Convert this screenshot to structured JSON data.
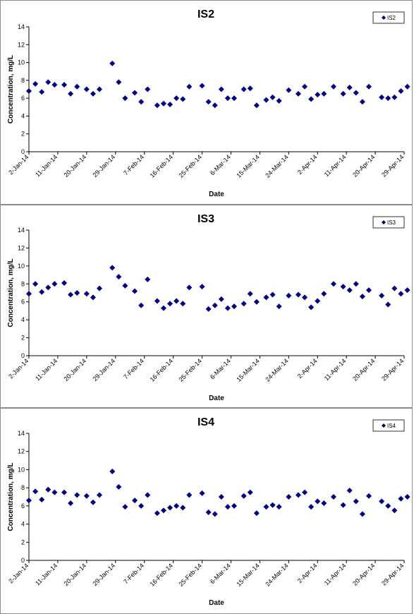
{
  "chart_data": [
    {
      "type": "scatter",
      "title": "IS2",
      "xlabel": "Date",
      "ylabel": "Concentration, mg/L",
      "ylim": [
        0,
        14
      ],
      "yticks": [
        0,
        2,
        4,
        6,
        8,
        10,
        12,
        14
      ],
      "xlim": [
        "2014-01-02",
        "2014-04-29"
      ],
      "xtick_labels": [
        "2-Jan-14",
        "11-Jan-14",
        "20-Jan-14",
        "29-Jan-14",
        "7-Feb-14",
        "16-Feb-14",
        "25-Feb-14",
        "6-Mar-14",
        "15-Mar-14",
        "24-Mar-14",
        "2-Apr-14",
        "11-Apr-14",
        "20-Apr-14",
        "29-Apr-14"
      ],
      "legend": "top-right",
      "grid": false,
      "series": [
        {
          "name": "IS2",
          "color": "#000080",
          "marker": "diamond",
          "points": [
            {
              "x": "2014-01-02",
              "y": 6.8
            },
            {
              "x": "2014-01-04",
              "y": 7.6
            },
            {
              "x": "2014-01-06",
              "y": 6.7
            },
            {
              "x": "2014-01-08",
              "y": 7.8
            },
            {
              "x": "2014-01-10",
              "y": 7.5
            },
            {
              "x": "2014-01-13",
              "y": 7.5
            },
            {
              "x": "2014-01-15",
              "y": 6.5
            },
            {
              "x": "2014-01-17",
              "y": 7.3
            },
            {
              "x": "2014-01-20",
              "y": 7.0
            },
            {
              "x": "2014-01-22",
              "y": 6.5
            },
            {
              "x": "2014-01-24",
              "y": 7.0
            },
            {
              "x": "2014-01-28",
              "y": 9.9
            },
            {
              "x": "2014-01-30",
              "y": 7.8
            },
            {
              "x": "2014-02-01",
              "y": 6.0
            },
            {
              "x": "2014-02-04",
              "y": 6.6
            },
            {
              "x": "2014-02-06",
              "y": 5.6
            },
            {
              "x": "2014-02-08",
              "y": 7.0
            },
            {
              "x": "2014-02-11",
              "y": 5.2
            },
            {
              "x": "2014-02-13",
              "y": 5.4
            },
            {
              "x": "2014-02-15",
              "y": 5.3
            },
            {
              "x": "2014-02-17",
              "y": 6.0
            },
            {
              "x": "2014-02-19",
              "y": 5.9
            },
            {
              "x": "2014-02-21",
              "y": 7.3
            },
            {
              "x": "2014-02-25",
              "y": 7.4
            },
            {
              "x": "2014-02-27",
              "y": 5.6
            },
            {
              "x": "2014-03-01",
              "y": 5.2
            },
            {
              "x": "2014-03-03",
              "y": 7.0
            },
            {
              "x": "2014-03-05",
              "y": 6.0
            },
            {
              "x": "2014-03-07",
              "y": 6.0
            },
            {
              "x": "2014-03-10",
              "y": 7.0
            },
            {
              "x": "2014-03-12",
              "y": 7.1
            },
            {
              "x": "2014-03-14",
              "y": 5.2
            },
            {
              "x": "2014-03-17",
              "y": 5.8
            },
            {
              "x": "2014-03-19",
              "y": 6.1
            },
            {
              "x": "2014-03-21",
              "y": 5.7
            },
            {
              "x": "2014-03-24",
              "y": 6.9
            },
            {
              "x": "2014-03-27",
              "y": 6.5
            },
            {
              "x": "2014-03-29",
              "y": 7.3
            },
            {
              "x": "2014-03-31",
              "y": 5.9
            },
            {
              "x": "2014-04-02",
              "y": 6.4
            },
            {
              "x": "2014-04-04",
              "y": 6.5
            },
            {
              "x": "2014-04-07",
              "y": 7.3
            },
            {
              "x": "2014-04-10",
              "y": 6.5
            },
            {
              "x": "2014-04-12",
              "y": 7.2
            },
            {
              "x": "2014-04-14",
              "y": 6.6
            },
            {
              "x": "2014-04-16",
              "y": 5.6
            },
            {
              "x": "2014-04-18",
              "y": 7.3
            },
            {
              "x": "2014-04-22",
              "y": 6.1
            },
            {
              "x": "2014-04-24",
              "y": 6.0
            },
            {
              "x": "2014-04-26",
              "y": 6.1
            },
            {
              "x": "2014-04-28",
              "y": 6.8
            },
            {
              "x": "2014-04-30",
              "y": 7.3
            }
          ]
        }
      ]
    },
    {
      "type": "scatter",
      "title": "IS3",
      "xlabel": "Date",
      "ylabel": "Concentration, mg/L",
      "ylim": [
        0,
        14
      ],
      "yticks": [
        0,
        2,
        4,
        6,
        8,
        10,
        12,
        14
      ],
      "xlim": [
        "2014-01-02",
        "2014-04-29"
      ],
      "xtick_labels": [
        "2-Jan-14",
        "11-Jan-14",
        "20-Jan-14",
        "29-Jan-14",
        "7-Feb-14",
        "16-Feb-14",
        "25-Feb-14",
        "6-Mar-14",
        "15-Mar-14",
        "24-Mar-14",
        "2-Apr-14",
        "11-Apr-14",
        "20-Apr-14",
        "29-Apr-14"
      ],
      "legend": "top-right",
      "grid": false,
      "series": [
        {
          "name": "IS3",
          "color": "#000080",
          "marker": "diamond",
          "points": [
            {
              "x": "2014-01-02",
              "y": 6.9
            },
            {
              "x": "2014-01-04",
              "y": 8.0
            },
            {
              "x": "2014-01-06",
              "y": 7.1
            },
            {
              "x": "2014-01-08",
              "y": 7.6
            },
            {
              "x": "2014-01-10",
              "y": 8.0
            },
            {
              "x": "2014-01-13",
              "y": 8.1
            },
            {
              "x": "2014-01-15",
              "y": 6.8
            },
            {
              "x": "2014-01-17",
              "y": 7.0
            },
            {
              "x": "2014-01-20",
              "y": 6.9
            },
            {
              "x": "2014-01-22",
              "y": 6.5
            },
            {
              "x": "2014-01-24",
              "y": 7.5
            },
            {
              "x": "2014-01-28",
              "y": 9.8
            },
            {
              "x": "2014-01-30",
              "y": 8.8
            },
            {
              "x": "2014-02-01",
              "y": 7.8
            },
            {
              "x": "2014-02-04",
              "y": 7.2
            },
            {
              "x": "2014-02-06",
              "y": 5.6
            },
            {
              "x": "2014-02-08",
              "y": 8.5
            },
            {
              "x": "2014-02-11",
              "y": 6.1
            },
            {
              "x": "2014-02-13",
              "y": 5.3
            },
            {
              "x": "2014-02-15",
              "y": 5.8
            },
            {
              "x": "2014-02-17",
              "y": 6.1
            },
            {
              "x": "2014-02-19",
              "y": 5.8
            },
            {
              "x": "2014-02-21",
              "y": 7.6
            },
            {
              "x": "2014-02-25",
              "y": 7.7
            },
            {
              "x": "2014-02-27",
              "y": 5.2
            },
            {
              "x": "2014-03-01",
              "y": 5.6
            },
            {
              "x": "2014-03-03",
              "y": 6.3
            },
            {
              "x": "2014-03-05",
              "y": 5.3
            },
            {
              "x": "2014-03-07",
              "y": 5.5
            },
            {
              "x": "2014-03-10",
              "y": 5.8
            },
            {
              "x": "2014-03-12",
              "y": 6.9
            },
            {
              "x": "2014-03-14",
              "y": 6.0
            },
            {
              "x": "2014-03-17",
              "y": 6.5
            },
            {
              "x": "2014-03-19",
              "y": 6.8
            },
            {
              "x": "2014-03-21",
              "y": 5.5
            },
            {
              "x": "2014-03-24",
              "y": 6.7
            },
            {
              "x": "2014-03-27",
              "y": 6.8
            },
            {
              "x": "2014-03-29",
              "y": 6.5
            },
            {
              "x": "2014-03-31",
              "y": 5.4
            },
            {
              "x": "2014-04-02",
              "y": 6.1
            },
            {
              "x": "2014-04-04",
              "y": 6.9
            },
            {
              "x": "2014-04-07",
              "y": 8.0
            },
            {
              "x": "2014-04-10",
              "y": 7.7
            },
            {
              "x": "2014-04-12",
              "y": 7.3
            },
            {
              "x": "2014-04-14",
              "y": 8.0
            },
            {
              "x": "2014-04-16",
              "y": 6.6
            },
            {
              "x": "2014-04-18",
              "y": 7.3
            },
            {
              "x": "2014-04-22",
              "y": 6.7
            },
            {
              "x": "2014-04-24",
              "y": 5.7
            },
            {
              "x": "2014-04-26",
              "y": 7.5
            },
            {
              "x": "2014-04-28",
              "y": 6.9
            },
            {
              "x": "2014-04-30",
              "y": 7.3
            }
          ]
        }
      ]
    },
    {
      "type": "scatter",
      "title": "IS4",
      "xlabel": "Date",
      "ylabel": "Concentration, mg/L",
      "ylim": [
        0,
        14
      ],
      "yticks": [
        0,
        2,
        4,
        6,
        8,
        10,
        12,
        14
      ],
      "xlim": [
        "2014-01-02",
        "2014-04-29"
      ],
      "xtick_labels": [
        "2-Jan-14",
        "11-Jan-14",
        "20-Jan-14",
        "29-Jan-14",
        "7-Feb-14",
        "16-Feb-14",
        "25-Feb-14",
        "6-Mar-14",
        "15-Mar-14",
        "24-Mar-14",
        "2-Apr-14",
        "11-Apr-14",
        "20-Apr-14",
        "29-Apr-14"
      ],
      "legend": "top-right",
      "grid": false,
      "series": [
        {
          "name": "IS4",
          "color": "#000080",
          "marker": "diamond",
          "points": [
            {
              "x": "2014-01-02",
              "y": 6.6
            },
            {
              "x": "2014-01-04",
              "y": 7.6
            },
            {
              "x": "2014-01-06",
              "y": 6.7
            },
            {
              "x": "2014-01-08",
              "y": 7.8
            },
            {
              "x": "2014-01-10",
              "y": 7.5
            },
            {
              "x": "2014-01-13",
              "y": 7.5
            },
            {
              "x": "2014-01-15",
              "y": 6.3
            },
            {
              "x": "2014-01-17",
              "y": 7.2
            },
            {
              "x": "2014-01-20",
              "y": 7.1
            },
            {
              "x": "2014-01-22",
              "y": 6.4
            },
            {
              "x": "2014-01-24",
              "y": 7.2
            },
            {
              "x": "2014-01-28",
              "y": 9.8
            },
            {
              "x": "2014-01-30",
              "y": 8.1
            },
            {
              "x": "2014-02-01",
              "y": 5.9
            },
            {
              "x": "2014-02-04",
              "y": 6.6
            },
            {
              "x": "2014-02-06",
              "y": 6.0
            },
            {
              "x": "2014-02-08",
              "y": 7.2
            },
            {
              "x": "2014-02-11",
              "y": 5.2
            },
            {
              "x": "2014-02-13",
              "y": 5.5
            },
            {
              "x": "2014-02-15",
              "y": 5.8
            },
            {
              "x": "2014-02-17",
              "y": 6.0
            },
            {
              "x": "2014-02-19",
              "y": 5.8
            },
            {
              "x": "2014-02-21",
              "y": 7.2
            },
            {
              "x": "2014-02-25",
              "y": 7.4
            },
            {
              "x": "2014-02-27",
              "y": 5.3
            },
            {
              "x": "2014-03-01",
              "y": 5.1
            },
            {
              "x": "2014-03-03",
              "y": 7.0
            },
            {
              "x": "2014-03-05",
              "y": 5.9
            },
            {
              "x": "2014-03-07",
              "y": 6.0
            },
            {
              "x": "2014-03-10",
              "y": 7.1
            },
            {
              "x": "2014-03-12",
              "y": 7.5
            },
            {
              "x": "2014-03-14",
              "y": 5.2
            },
            {
              "x": "2014-03-17",
              "y": 5.9
            },
            {
              "x": "2014-03-19",
              "y": 6.1
            },
            {
              "x": "2014-03-21",
              "y": 5.9
            },
            {
              "x": "2014-03-24",
              "y": 7.0
            },
            {
              "x": "2014-03-27",
              "y": 7.2
            },
            {
              "x": "2014-03-29",
              "y": 7.5
            },
            {
              "x": "2014-03-31",
              "y": 5.9
            },
            {
              "x": "2014-04-02",
              "y": 6.5
            },
            {
              "x": "2014-04-04",
              "y": 6.3
            },
            {
              "x": "2014-04-07",
              "y": 7.0
            },
            {
              "x": "2014-04-10",
              "y": 6.1
            },
            {
              "x": "2014-04-12",
              "y": 7.7
            },
            {
              "x": "2014-04-14",
              "y": 6.5
            },
            {
              "x": "2014-04-16",
              "y": 5.1
            },
            {
              "x": "2014-04-18",
              "y": 7.1
            },
            {
              "x": "2014-04-22",
              "y": 6.5
            },
            {
              "x": "2014-04-24",
              "y": 6.0
            },
            {
              "x": "2014-04-26",
              "y": 5.5
            },
            {
              "x": "2014-04-28",
              "y": 6.8
            },
            {
              "x": "2014-04-30",
              "y": 7.0
            }
          ]
        }
      ]
    }
  ]
}
